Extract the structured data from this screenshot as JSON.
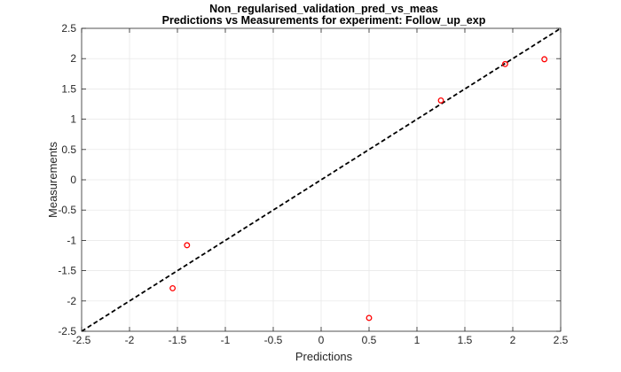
{
  "chart_data": {
    "type": "scatter",
    "title_lines": [
      "Non_regularised_validation_pred_vs_meas",
      "Predictions vs Measurements for experiment: Follow_up_exp"
    ],
    "xlabel": "Predictions",
    "ylabel": "Measurements",
    "xlim": [
      -2.5,
      2.5
    ],
    "ylim": [
      -2.5,
      2.5
    ],
    "xticks": [
      -2.5,
      -2,
      -1.5,
      -1,
      -0.5,
      0,
      0.5,
      1,
      1.5,
      2,
      2.5
    ],
    "yticks": [
      -2.5,
      -2,
      -1.5,
      -1,
      -0.5,
      0,
      0.5,
      1,
      1.5,
      2,
      2.5
    ],
    "xtick_labels": [
      "-2.5",
      "-2",
      "-1.5",
      "-1",
      "-0.5",
      "0",
      "0.5",
      "1",
      "1.5",
      "2",
      "2.5"
    ],
    "ytick_labels": [
      "-2.5",
      "-2",
      "-1.5",
      "-1",
      "-0.5",
      "0",
      "0.5",
      "1",
      "1.5",
      "2",
      "2.5"
    ],
    "grid": true,
    "series": [
      {
        "marker": "circle",
        "color": "#ff0000",
        "points": [
          {
            "x": -1.55,
            "y": -1.79
          },
          {
            "x": -1.4,
            "y": -1.08
          },
          {
            "x": 0.5,
            "y": -2.28
          },
          {
            "x": 1.25,
            "y": 1.31
          },
          {
            "x": 1.92,
            "y": 1.91
          },
          {
            "x": 2.33,
            "y": 1.99
          }
        ]
      }
    ],
    "reference_line": {
      "style": "dashed",
      "color": "#000000",
      "from": {
        "x": -2.5,
        "y": -2.5
      },
      "to": {
        "x": 2.5,
        "y": 2.5
      }
    }
  }
}
